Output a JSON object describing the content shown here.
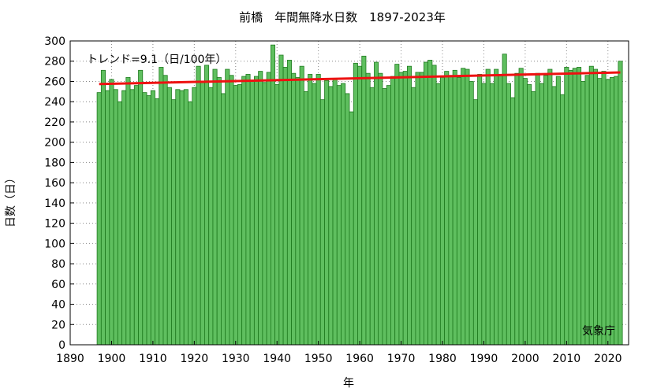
{
  "chart_data": {
    "type": "bar",
    "title": "前橋　年間無降水日数　1897-2023年",
    "xlabel": "年",
    "ylabel": "日数（日）",
    "trend_label": "トレンド=9.1（日/100年）",
    "source_label": "気象庁",
    "xlim": [
      1890,
      2025
    ],
    "ylim": [
      0,
      300
    ],
    "x_ticks": [
      1890,
      1900,
      1910,
      1920,
      1930,
      1940,
      1950,
      1960,
      1970,
      1980,
      1990,
      2000,
      2010,
      2020
    ],
    "y_ticks": [
      0,
      20,
      40,
      60,
      80,
      100,
      120,
      140,
      160,
      180,
      200,
      220,
      240,
      260,
      280,
      300
    ],
    "grid": true,
    "colors": {
      "bar_fill": "#5fbf5f",
      "bar_edge": "#1e7a1e",
      "trend": "#ee1111",
      "grid": "#888888"
    },
    "trend": {
      "x": [
        1897,
        2023
      ],
      "y": [
        257.4,
        268.9
      ]
    },
    "years": [
      1897,
      1898,
      1899,
      1900,
      1901,
      1902,
      1903,
      1904,
      1905,
      1906,
      1907,
      1908,
      1909,
      1910,
      1911,
      1912,
      1913,
      1914,
      1915,
      1916,
      1917,
      1918,
      1919,
      1920,
      1921,
      1922,
      1923,
      1924,
      1925,
      1926,
      1927,
      1928,
      1929,
      1930,
      1931,
      1932,
      1933,
      1934,
      1935,
      1936,
      1937,
      1938,
      1939,
      1940,
      1941,
      1942,
      1943,
      1944,
      1945,
      1946,
      1947,
      1948,
      1949,
      1950,
      1951,
      1952,
      1953,
      1954,
      1955,
      1956,
      1957,
      1958,
      1959,
      1960,
      1961,
      1962,
      1963,
      1964,
      1965,
      1966,
      1967,
      1968,
      1969,
      1970,
      1971,
      1972,
      1973,
      1974,
      1975,
      1976,
      1977,
      1978,
      1979,
      1980,
      1981,
      1982,
      1983,
      1984,
      1985,
      1986,
      1987,
      1988,
      1989,
      1990,
      1991,
      1992,
      1993,
      1994,
      1995,
      1996,
      1997,
      1998,
      1999,
      2000,
      2001,
      2002,
      2003,
      2004,
      2005,
      2006,
      2007,
      2008,
      2009,
      2010,
      2011,
      2012,
      2013,
      2014,
      2015,
      2016,
      2017,
      2018,
      2019,
      2020,
      2021,
      2022,
      2023
    ],
    "values": [
      249,
      271,
      251,
      262,
      252,
      240,
      251,
      264,
      252,
      256,
      271,
      249,
      246,
      251,
      243,
      274,
      266,
      254,
      242,
      252,
      251,
      252,
      240,
      254,
      275,
      260,
      276,
      254,
      272,
      264,
      248,
      272,
      266,
      256,
      257,
      265,
      267,
      260,
      265,
      270,
      259,
      269,
      296,
      257,
      286,
      274,
      281,
      268,
      264,
      275,
      250,
      267,
      258,
      267,
      242,
      261,
      255,
      262,
      256,
      258,
      248,
      230,
      278,
      275,
      285,
      268,
      254,
      279,
      268,
      253,
      256,
      265,
      277,
      269,
      270,
      275,
      254,
      269,
      269,
      279,
      281,
      276,
      258,
      264,
      270,
      266,
      271,
      264,
      273,
      272,
      260,
      242,
      267,
      258,
      272,
      258,
      272,
      266,
      287,
      258,
      244,
      268,
      273,
      263,
      257,
      250,
      268,
      258,
      266,
      272,
      255,
      265,
      247,
      274,
      271,
      273,
      274,
      260,
      266,
      275,
      272,
      263,
      270,
      262,
      264,
      265,
      280
    ]
  }
}
